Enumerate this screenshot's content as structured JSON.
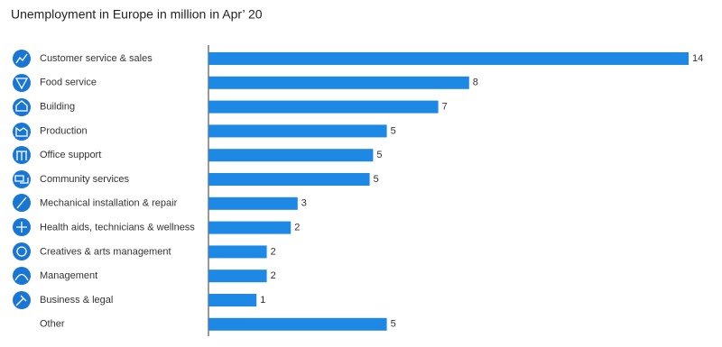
{
  "chart_data": {
    "type": "bar",
    "orientation": "horizontal",
    "title": "Unemployment in Europe in million in Apr’ 20",
    "categories": [
      "Customer service &  sales",
      "Food service",
      "Building",
      "Production",
      "Office support",
      "Community services",
      "Mechanical installation & repair",
      "Health aids, technicians & wellness",
      "Creatives & arts management",
      "Management",
      "Business & legal",
      "Other"
    ],
    "values": [
      14,
      7.6,
      6.7,
      5.2,
      4.8,
      4.7,
      2.6,
      2.4,
      1.7,
      1.7,
      1.4,
      5.2
    ],
    "value_labels": [
      "14",
      "8",
      "7",
      "5",
      "5",
      "5",
      "3",
      "2",
      "2",
      "2",
      "1",
      "5"
    ],
    "color": "#1e88e5"
  }
}
